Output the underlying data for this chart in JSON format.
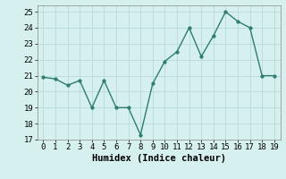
{
  "x": [
    0,
    1,
    2,
    3,
    4,
    5,
    6,
    7,
    8,
    9,
    10,
    11,
    12,
    13,
    14,
    15,
    16,
    17,
    18,
    19
  ],
  "y": [
    20.9,
    20.8,
    20.4,
    20.7,
    19.0,
    20.7,
    19.0,
    19.0,
    17.3,
    20.5,
    21.9,
    22.5,
    24.0,
    22.2,
    23.5,
    25.0,
    24.4,
    24.0,
    21.0,
    21.0
  ],
  "line_color": "#2e7d6e",
  "marker_color": "#2e7d6e",
  "bg_color": "#d6f0ef",
  "grid_color": "#b8dbd8",
  "xlabel": "Humidex (Indice chaleur)",
  "xlim": [
    -0.5,
    19.5
  ],
  "ylim": [
    17,
    25.4
  ],
  "yticks": [
    17,
    18,
    19,
    20,
    21,
    22,
    23,
    24,
    25
  ],
  "xticks": [
    0,
    1,
    2,
    3,
    4,
    5,
    6,
    7,
    8,
    9,
    10,
    11,
    12,
    13,
    14,
    15,
    16,
    17,
    18,
    19
  ],
  "marker_size": 2.5,
  "line_width": 1.0,
  "xlabel_fontsize": 7.5,
  "tick_fontsize": 6.5
}
